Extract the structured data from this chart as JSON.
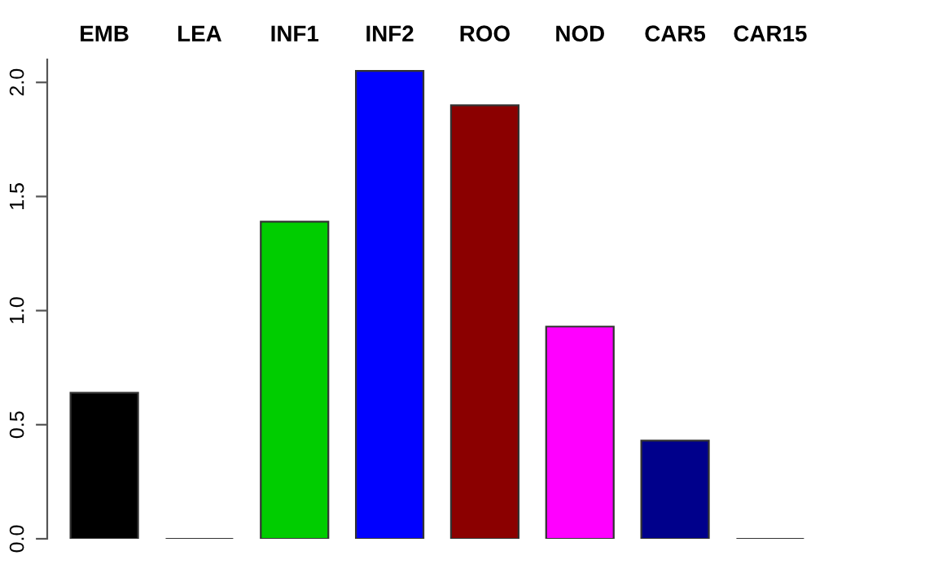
{
  "chart_data": {
    "type": "bar",
    "categories": [
      "EMB",
      "LEA",
      "INF1",
      "INF2",
      "ROO",
      "NOD",
      "CAR5",
      "CAR15"
    ],
    "values": [
      0.64,
      0,
      1.39,
      2.05,
      1.9,
      0.93,
      0.43,
      0
    ],
    "colors": [
      "#000000",
      "#333333",
      "#00cd00",
      "#0000ff",
      "#8b0000",
      "#ff00ff",
      "#00008b",
      "#333333"
    ],
    "ylim": [
      0,
      2.1
    ],
    "yticks": [
      {
        "value": 0,
        "label": "0.0"
      },
      {
        "value": 0.5,
        "label": "0.5"
      },
      {
        "value": 1,
        "label": "1.0"
      },
      {
        "value": 1.5,
        "label": "1.5"
      },
      {
        "value": 2,
        "label": "2.0"
      }
    ],
    "grid": false
  }
}
